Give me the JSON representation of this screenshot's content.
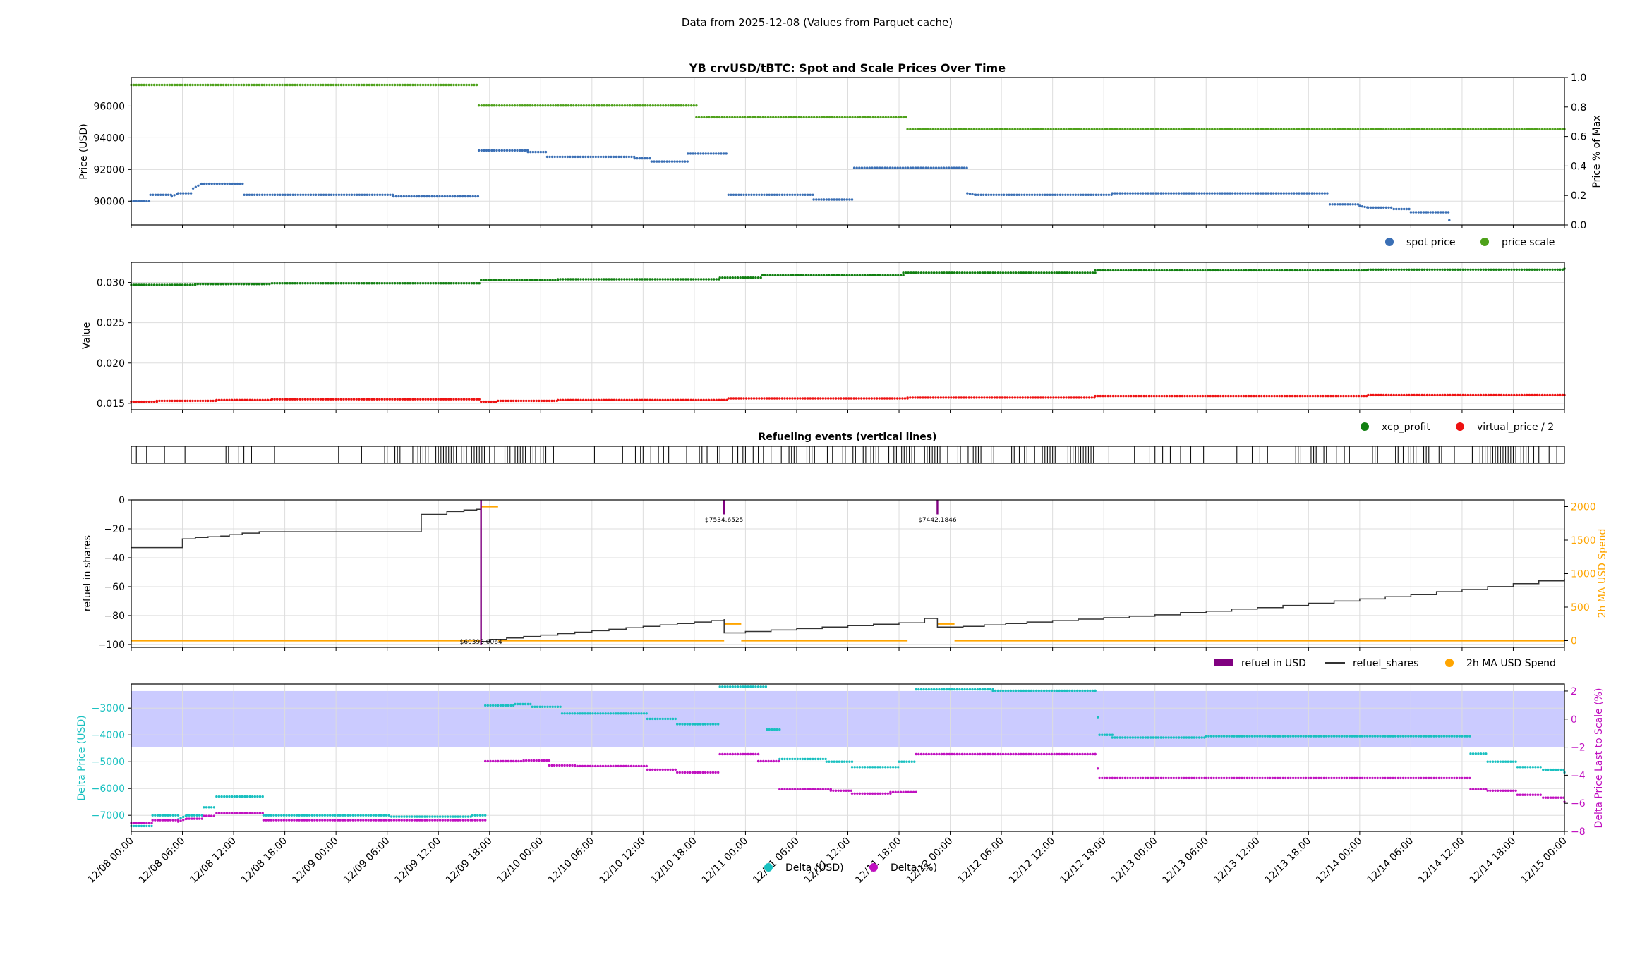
{
  "suptitle": "Data from 2025-12-08 (Values from Parquet cache)",
  "x_tick_labels": [
    "12/08 00:00",
    "12/08 06:00",
    "12/08 12:00",
    "12/08 18:00",
    "12/09 00:00",
    "12/09 06:00",
    "12/09 12:00",
    "12/09 18:00",
    "12/10 00:00",
    "12/10 06:00",
    "12/10 12:00",
    "12/10 18:00",
    "12/11 00:00",
    "12/11 06:00",
    "12/11 12:00",
    "12/11 18:00",
    "12/12 00:00",
    "12/12 06:00",
    "12/12 12:00",
    "12/12 18:00",
    "12/13 00:00",
    "12/13 06:00",
    "12/13 12:00",
    "12/13 18:00",
    "12/14 00:00",
    "12/14 06:00",
    "12/14 12:00",
    "12/14 18:00",
    "12/15 00:00"
  ],
  "colors": {
    "spot": "#3a6fb5",
    "scale": "#4ea11a",
    "xcp": "#118011",
    "vp": "#ee1111",
    "refuel_usd": "#800080",
    "shares": "#333333",
    "ma": "#ffa500",
    "delta_usd": "#18c0c0",
    "delta_pct": "#c010c0",
    "band": "#c8c8ff"
  },
  "chart_data": [
    {
      "type": "scatter",
      "title": "YB crvUSD/tBTC: Spot and Scale Prices Over Time",
      "xlabel": "",
      "ylabel": "Price (USD)",
      "y2label": "Price % of Max",
      "ylim": [
        88500,
        97800
      ],
      "y2lim": [
        0,
        1
      ],
      "yticks": [
        "90000",
        "92000",
        "94000",
        "96000"
      ],
      "y2ticks": [
        "0.0",
        "0.2",
        "0.4",
        "0.6",
        "0.8",
        "1.0"
      ],
      "legend": [
        "spot price",
        "price scale"
      ],
      "legend_loc": "lower-right outside",
      "series": [
        {
          "name": "spot price",
          "axis": "left",
          "steps": [
            [
              0,
              90000
            ],
            [
              4.5,
              90400
            ],
            [
              9.5,
              90300
            ],
            [
              11,
              90500
            ],
            [
              14.5,
              90800
            ],
            [
              16.5,
              91100
            ],
            [
              26.5,
              90400
            ],
            [
              61.5,
              90300
            ],
            [
              81.5,
              93200
            ],
            [
              93,
              93100
            ],
            [
              97.5,
              92800
            ],
            [
              118,
              92700
            ],
            [
              122,
              92500
            ],
            [
              130.5,
              93000
            ],
            [
              140,
              90400
            ],
            [
              160,
              90100
            ],
            [
              169.5,
              92100
            ],
            [
              196,
              90500
            ],
            [
              198,
              90400
            ],
            [
              230,
              90500
            ],
            [
              236,
              90500
            ],
            [
              281,
              89800
            ],
            [
              288,
              89700
            ],
            [
              290,
              89600
            ],
            [
              296,
              89500
            ],
            [
              300,
              89300
            ],
            [
              304,
              89300
            ],
            [
              309,
              88800
            ]
          ]
        },
        {
          "name": "price scale",
          "axis": "right",
          "steps": [
            [
              0,
              0.95
            ],
            [
              81.5,
              0.81
            ],
            [
              132.5,
              0.73
            ],
            [
              182,
              0.65
            ],
            [
              336,
              0.65
            ]
          ]
        }
      ]
    },
    {
      "type": "scatter",
      "title": "",
      "ylabel": "Value",
      "ylim": [
        0.0142,
        0.0325
      ],
      "yticks": [
        "0.015",
        "0.020",
        "0.025",
        "0.030"
      ],
      "legend": [
        "xcp_profit",
        "virtual_price / 2"
      ],
      "legend_loc": "lower-right outside",
      "series": [
        {
          "name": "xcp_profit",
          "steps": [
            [
              0,
              0.0297
            ],
            [
              15,
              0.0298
            ],
            [
              33,
              0.0299
            ],
            [
              82,
              0.0303
            ],
            [
              100,
              0.0304
            ],
            [
              138,
              0.0306
            ],
            [
              148,
              0.0309
            ],
            [
              181,
              0.0312
            ],
            [
              226,
              0.0315
            ],
            [
              290,
              0.0316
            ],
            [
              336,
              0.0317
            ]
          ]
        },
        {
          "name": "virtual_price / 2",
          "steps": [
            [
              0,
              0.0152
            ],
            [
              6,
              0.0153
            ],
            [
              20,
              0.0154
            ],
            [
              33,
              0.0155
            ],
            [
              82,
              0.0152
            ],
            [
              86,
              0.0153
            ],
            [
              100,
              0.0154
            ],
            [
              140,
              0.0156
            ],
            [
              182,
              0.0157
            ],
            [
              226,
              0.0159
            ],
            [
              290,
              0.016
            ],
            [
              336,
              0.016
            ]
          ]
        }
      ]
    },
    {
      "type": "event_lines",
      "title": "Refueling events (vertical lines)"
    },
    {
      "type": "line",
      "title": "",
      "ylabel": "refuel in shares",
      "y2label": "2h MA USD Spend",
      "ylim": [
        -102,
        0
      ],
      "y2lim": [
        -100,
        2100
      ],
      "yticks": [
        "−100",
        "−80",
        "−60",
        "−40",
        "−20",
        "0"
      ],
      "y2ticks": [
        "0",
        "500",
        "1000",
        "1500",
        "2000"
      ],
      "legend": [
        "refuel in USD",
        "refuel_shares",
        "2h MA USD Spend"
      ],
      "legend_loc": "lower-right outside",
      "annotations": [
        {
          "x": 82,
          "text": "$60393.0064"
        },
        {
          "x": 139,
          "text": "$7534.6525"
        },
        {
          "x": 189,
          "text": "$7442.1846"
        }
      ],
      "series": [
        {
          "name": "refuel in USD",
          "type": "vline",
          "x": [
            82,
            139,
            189
          ],
          "top": [
            0,
            0,
            0
          ],
          "bottom": [
            -100,
            -10,
            -10
          ]
        },
        {
          "name": "refuel_shares",
          "steps": [
            [
              0,
              -33
            ],
            [
              12,
              -27
            ],
            [
              15,
              -26
            ],
            [
              18,
              -25.5
            ],
            [
              21,
              -25
            ],
            [
              23,
              -24
            ],
            [
              26,
              -23
            ],
            [
              30,
              -22
            ],
            [
              68,
              -10
            ],
            [
              74,
              -8
            ],
            [
              78,
              -7
            ],
            [
              81,
              -6.5
            ],
            [
              82,
              -98
            ],
            [
              84,
              -96.5
            ],
            [
              88,
              -95.5
            ],
            [
              92,
              -94.5
            ],
            [
              96,
              -93.5
            ],
            [
              100,
              -92.5
            ],
            [
              104,
              -91.5
            ],
            [
              108,
              -90.5
            ],
            [
              112,
              -89.5
            ],
            [
              116,
              -88.5
            ],
            [
              120,
              -87.5
            ],
            [
              124,
              -86.5
            ],
            [
              128,
              -85.5
            ],
            [
              132,
              -84.5
            ],
            [
              136,
              -83.5
            ],
            [
              139,
              -82.5
            ],
            [
              139,
              -92
            ],
            [
              144,
              -91
            ],
            [
              150,
              -90
            ],
            [
              156,
              -89
            ],
            [
              162,
              -88
            ],
            [
              168,
              -87
            ],
            [
              174,
              -86
            ],
            [
              180,
              -85
            ],
            [
              186,
              -82
            ],
            [
              189,
              -81.5
            ],
            [
              189,
              -88
            ],
            [
              192,
              -88
            ],
            [
              195,
              -87.5
            ],
            [
              200,
              -86.5
            ],
            [
              205,
              -85.5
            ],
            [
              210,
              -84.5
            ],
            [
              216,
              -83.5
            ],
            [
              222,
              -82.5
            ],
            [
              228,
              -81.5
            ],
            [
              234,
              -80.5
            ],
            [
              240,
              -79.5
            ],
            [
              246,
              -78
            ],
            [
              252,
              -77
            ],
            [
              258,
              -75.5
            ],
            [
              264,
              -74.5
            ],
            [
              270,
              -73
            ],
            [
              276,
              -71.5
            ],
            [
              282,
              -70
            ],
            [
              288,
              -68.5
            ],
            [
              294,
              -67
            ],
            [
              300,
              -65.5
            ],
            [
              306,
              -63.5
            ],
            [
              312,
              -62
            ],
            [
              318,
              -60
            ],
            [
              324,
              -58
            ],
            [
              330,
              -56
            ],
            [
              336,
              -54.5
            ]
          ]
        },
        {
          "name": "2h MA USD Spend",
          "axis": "right",
          "segments": [
            [
              [
                0,
                0
              ],
              [
                82,
                0
              ]
            ],
            [
              [
                82,
                2000
              ],
              [
                86,
                2000
              ]
            ],
            [
              [
                86,
                0
              ],
              [
                139,
                0
              ]
            ],
            [
              [
                139,
                250
              ],
              [
                143,
                250
              ]
            ],
            [
              [
                143,
                0
              ],
              [
                182,
                0
              ]
            ],
            [
              [
                189,
                250
              ],
              [
                193,
                250
              ]
            ],
            [
              [
                193,
                0
              ],
              [
                336,
                0
              ]
            ]
          ]
        }
      ]
    },
    {
      "type": "scatter",
      "title": "",
      "xlabel": "",
      "ylabel": "Delta Price (USD)",
      "y2label": "Delta Price Last to Scale (%)",
      "ylim": [
        -7600,
        -2100
      ],
      "y2lim": [
        -8,
        2.5
      ],
      "yticks": [
        "−7000",
        "−6000",
        "−5000",
        "−4000",
        "−3000"
      ],
      "y2ticks": [
        "−8",
        "−6",
        "−4",
        "−2",
        "0",
        "2"
      ],
      "band_pct": [
        -2,
        2
      ],
      "legend": [
        "Delta (USD)",
        "Delta (%)"
      ],
      "legend_loc": "bottom-center outside",
      "series": [
        {
          "name": "Delta (USD)",
          "steps": [
            [
              0,
              -7400
            ],
            [
              5,
              -7000
            ],
            [
              11,
              -7150
            ],
            [
              13,
              -7000
            ],
            [
              17,
              -6700
            ],
            [
              20,
              -6300
            ],
            [
              31,
              -7000
            ],
            [
              61,
              -7050
            ],
            [
              80,
              -7000
            ],
            [
              83,
              -2900
            ],
            [
              90,
              -2850
            ],
            [
              94,
              -2950
            ],
            [
              101,
              -3200
            ],
            [
              121,
              -3400
            ],
            [
              128,
              -3600
            ],
            [
              138,
              -2200
            ],
            [
              149,
              -3800
            ],
            [
              152,
              -4900
            ],
            [
              163,
              -5000
            ],
            [
              169,
              -5200
            ],
            [
              180,
              -5000
            ],
            [
              184,
              -2300
            ],
            [
              202,
              -2350
            ],
            [
              226,
              -2350
            ],
            [
              227,
              -4000
            ],
            [
              230,
              -4200
            ],
            [
              230,
              -4100
            ],
            [
              252,
              -4050
            ],
            [
              314,
              -4700
            ],
            [
              318,
              -5000
            ],
            [
              325,
              -5200
            ],
            [
              331,
              -5300
            ],
            [
              336,
              -5400
            ]
          ]
        },
        {
          "name": "Delta (%)",
          "steps": [
            [
              0,
              -7.4
            ],
            [
              5,
              -7.2
            ],
            [
              11,
              -7.3
            ],
            [
              13,
              -7.1
            ],
            [
              17,
              -6.9
            ],
            [
              20,
              -6.7
            ],
            [
              31,
              -7.2
            ],
            [
              80,
              -7.2
            ],
            [
              83,
              -3.0
            ],
            [
              92,
              -2.95
            ],
            [
              98,
              -3.3
            ],
            [
              104,
              -3.35
            ],
            [
              121,
              -3.6
            ],
            [
              128,
              -3.8
            ],
            [
              138,
              -2.5
            ],
            [
              147,
              -3.0
            ],
            [
              152,
              -5.0
            ],
            [
              164,
              -5.1
            ],
            [
              169,
              -5.3
            ],
            [
              178,
              -5.2
            ],
            [
              184,
              -2.5
            ],
            [
              226,
              -2.5
            ],
            [
              227,
              -4.2
            ],
            [
              230,
              -4.3
            ],
            [
              230,
              -4.2
            ],
            [
              252,
              -4.2
            ],
            [
              314,
              -5.0
            ],
            [
              318,
              -5.1
            ],
            [
              325,
              -5.4
            ],
            [
              331,
              -5.6
            ],
            [
              336,
              -5.9
            ]
          ]
        }
      ]
    }
  ]
}
